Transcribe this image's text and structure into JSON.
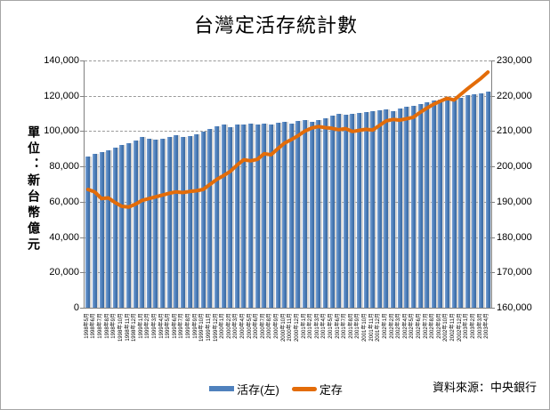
{
  "title": "台灣定活存統計數",
  "unit_label": "單位：新台幣億元",
  "source": "資料來源：中央銀行",
  "colors": {
    "bar": "#4F81BD",
    "line": "#E36C09",
    "gridline": "#9A9A9A",
    "axis": "#808080"
  },
  "legend": [
    {
      "label": "活存(左)",
      "color": "#4F81BD",
      "type": "bar"
    },
    {
      "label": "定存",
      "color": "#E36C09",
      "type": "line"
    }
  ],
  "chart_data": {
    "type": "bar",
    "subtype": "bar+line dual axis",
    "title": "台灣定活存統計數",
    "xlabel": "",
    "ylabel_left": "單位：新台幣億元",
    "grid": "dashed horizontal",
    "legend_position": "bottom center",
    "left_axis": {
      "min": 0,
      "max": 140000,
      "step": 20000,
      "ticks": [
        "0",
        "20,000",
        "40,000",
        "60,000",
        "80,000",
        "100,000",
        "120,000",
        "140,000"
      ]
    },
    "right_axis": {
      "min": 160000,
      "max": 230000,
      "step": 10000,
      "ticks": [
        "160,000",
        "170,000",
        "180,000",
        "190,000",
        "200,000",
        "210,000",
        "220,000",
        "230,000"
      ]
    },
    "categories": [
      "1998年5月",
      "1998年6月",
      "1998年7月",
      "1998年8月",
      "1998年9月",
      "1998年10月",
      "1998年11月",
      "1998年12月",
      "1999年1月",
      "1999年2月",
      "1999年3月",
      "1999年4月",
      "1999年5月",
      "1999年6月",
      "1999年7月",
      "1999年8月",
      "1999年9月",
      "1999年10月",
      "1999年11月",
      "1999年12月",
      "2000年1月",
      "2000年2月",
      "2000年3月",
      "2000年4月",
      "2000年5月",
      "2000年6月",
      "2000年7月",
      "2000年8月",
      "2000年9月",
      "2000年10月",
      "2000年11月",
      "2000年12月",
      "2001年1月",
      "2001年2月",
      "2001年3月",
      "2001年4月",
      "2001年5月",
      "2001年6月",
      "2001年7月",
      "2001年8月",
      "2001年9月",
      "2001年10月",
      "2001年11月",
      "2001年12月",
      "2002年1月",
      "2002年2月",
      "2002年3月",
      "2002年4月",
      "2002年5月",
      "2002年6月",
      "2002年7月",
      "2002年8月",
      "2002年9月",
      "2002年10月",
      "2002年11月",
      "2002年12月",
      "2003年1月",
      "2003年2月",
      "2003年3月",
      "2003年4月"
    ],
    "series": [
      {
        "name": "活存(左)",
        "type": "bar",
        "axis": "left",
        "color": "#4F81BD",
        "values": [
          85500,
          87000,
          88000,
          89000,
          90500,
          92000,
          93000,
          94500,
          96500,
          95500,
          95000,
          95500,
          96500,
          97500,
          96500,
          97000,
          98000,
          99500,
          101000,
          102500,
          103500,
          102000,
          104000,
          103500,
          104500,
          103500,
          104500,
          104000,
          105000,
          105500,
          104500,
          106000,
          106500,
          105500,
          106500,
          107500,
          109000,
          110000,
          109500,
          110000,
          110500,
          111000,
          111500,
          112000,
          112500,
          111500,
          113000,
          114000,
          114500,
          115500,
          116500,
          117500,
          118000,
          119500,
          118500,
          119000,
          120500,
          121000,
          121500,
          122500
        ]
      },
      {
        "name": "定存",
        "type": "line",
        "axis": "right",
        "color": "#E36C09",
        "values": [
          193500,
          192800,
          190900,
          191100,
          189800,
          188700,
          188500,
          189300,
          190400,
          190900,
          191400,
          191900,
          192400,
          192800,
          192600,
          192900,
          193100,
          193500,
          194900,
          196300,
          197400,
          198600,
          200400,
          201900,
          201600,
          202000,
          203600,
          203300,
          205000,
          206600,
          207600,
          208700,
          210000,
          210900,
          211300,
          211000,
          210800,
          210400,
          210700,
          209900,
          210200,
          210500,
          210300,
          211600,
          212900,
          213300,
          213100,
          213500,
          213900,
          215300,
          216500,
          217600,
          218500,
          219300,
          218800,
          220400,
          222000,
          223500,
          225000,
          226700
        ]
      }
    ]
  }
}
